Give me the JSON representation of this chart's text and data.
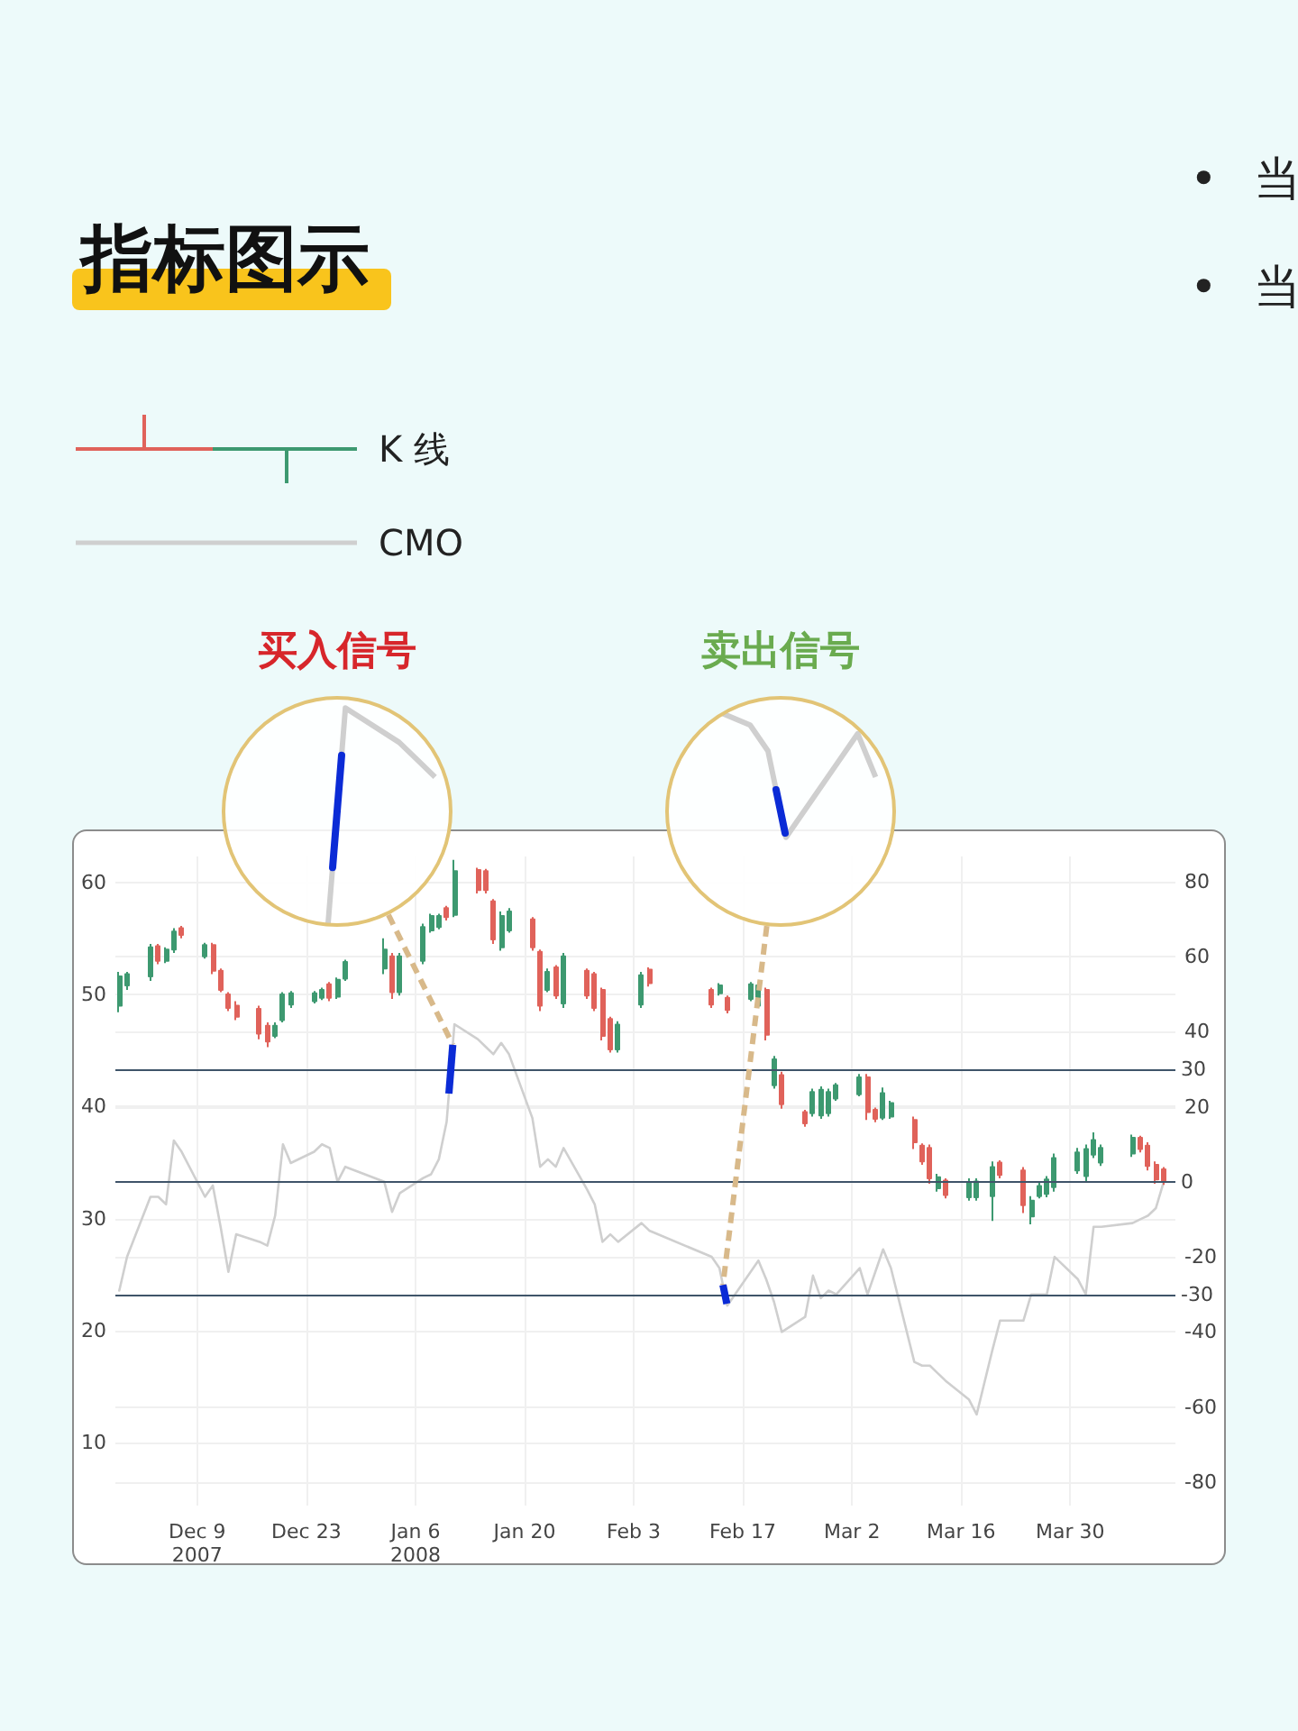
{
  "chart_data": {
    "type": "candlestick",
    "title": "指标图示",
    "annotations": [
      "• 当",
      "• 当",
      "买入信号",
      "卖出信号"
    ],
    "x": [
      "2007-11-29",
      "2007-11-30",
      "2007-12-03",
      "2007-12-04",
      "2007-12-05",
      "2007-12-06",
      "2007-12-07",
      "2007-12-10",
      "2007-12-11",
      "2007-12-12",
      "2007-12-13",
      "2007-12-14",
      "2007-12-17",
      "2007-12-18",
      "2007-12-19",
      "2007-12-20",
      "2007-12-21",
      "2007-12-24",
      "2007-12-25",
      "2007-12-26",
      "2007-12-27",
      "2007-12-28",
      "2008-01-02",
      "2008-01-03",
      "2008-01-04",
      "2008-01-07",
      "2008-01-08",
      "2008-01-09",
      "2008-01-10",
      "2008-01-11",
      "2008-01-14",
      "2008-01-15",
      "2008-01-16",
      "2008-01-17",
      "2008-01-18",
      "2008-01-21",
      "2008-01-22",
      "2008-01-23",
      "2008-01-24",
      "2008-01-25",
      "2008-01-28",
      "2008-01-29",
      "2008-01-30",
      "2008-01-31",
      "2008-02-01",
      "2008-02-04",
      "2008-02-05",
      "2008-02-13",
      "2008-02-14",
      "2008-02-15",
      "2008-02-18",
      "2008-02-19",
      "2008-02-20",
      "2008-02-21",
      "2008-02-22",
      "2008-02-25",
      "2008-02-26",
      "2008-02-27",
      "2008-02-28",
      "2008-02-29",
      "2008-03-03",
      "2008-03-04",
      "2008-03-05",
      "2008-03-06",
      "2008-03-07",
      "2008-03-10",
      "2008-03-11",
      "2008-03-12",
      "2008-03-13",
      "2008-03-14",
      "2008-03-17",
      "2008-03-18",
      "2008-03-20",
      "2008-03-21",
      "2008-03-24",
      "2008-03-25",
      "2008-03-26",
      "2008-03-27",
      "2008-03-28",
      "2008-03-31",
      "2008-04-01",
      "2008-04-02",
      "2008-04-03",
      "2008-04-07",
      "2008-04-08",
      "2008-04-09",
      "2008-04-10",
      "2008-04-11"
    ],
    "series": [
      {
        "name": "K 线",
        "ohlc": [
          [
            49.0,
            52.0,
            48.4,
            51.6
          ],
          [
            50.8,
            52.0,
            50.4,
            51.8
          ],
          [
            51.6,
            54.5,
            51.2,
            54.2
          ],
          [
            54.3,
            54.5,
            52.7,
            53.0
          ],
          [
            53.0,
            54.2,
            52.8,
            54.0
          ],
          [
            54.0,
            55.9,
            53.7,
            55.6
          ],
          [
            55.9,
            56.1,
            55.0,
            55.3
          ],
          [
            53.4,
            54.6,
            53.2,
            54.4
          ],
          [
            54.4,
            54.6,
            51.8,
            52.1
          ],
          [
            52.1,
            52.3,
            50.2,
            50.4
          ],
          [
            50.0,
            50.2,
            48.5,
            48.8
          ],
          [
            49.0,
            49.4,
            47.7,
            48.0
          ],
          [
            48.7,
            49.0,
            46.0,
            46.5
          ],
          [
            47.2,
            47.5,
            45.3,
            45.8
          ],
          [
            46.3,
            47.5,
            46.1,
            47.2
          ],
          [
            47.7,
            50.2,
            47.5,
            50.0
          ],
          [
            49.1,
            50.3,
            48.8,
            50.1
          ],
          [
            49.4,
            50.3,
            49.2,
            50.1
          ],
          [
            49.7,
            50.6,
            49.5,
            50.4
          ],
          [
            50.9,
            51.1,
            49.4,
            49.7
          ],
          [
            49.8,
            51.5,
            49.6,
            51.3
          ],
          [
            51.4,
            53.1,
            51.2,
            52.9
          ],
          [
            52.3,
            55.0,
            51.8,
            54.0
          ],
          [
            53.4,
            53.7,
            49.6,
            50.2
          ],
          [
            50.2,
            53.7,
            49.9,
            53.4
          ],
          [
            53.0,
            56.3,
            52.7,
            56.0
          ],
          [
            55.7,
            57.2,
            55.5,
            57.0
          ],
          [
            56.0,
            57.2,
            55.8,
            57.0
          ],
          [
            57.7,
            57.9,
            56.6,
            56.9
          ],
          [
            57.1,
            62.0,
            56.9,
            61.0
          ],
          [
            61.1,
            61.3,
            59.0,
            59.3
          ],
          [
            61.0,
            61.2,
            59.0,
            59.3
          ],
          [
            58.3,
            58.5,
            54.5,
            54.9
          ],
          [
            54.2,
            57.4,
            53.9,
            57.0
          ],
          [
            55.7,
            57.7,
            55.5,
            57.4
          ],
          [
            56.7,
            56.9,
            53.9,
            54.2
          ],
          [
            53.8,
            54.0,
            48.5,
            49.0
          ],
          [
            50.4,
            52.3,
            50.2,
            52.0
          ],
          [
            52.4,
            52.6,
            49.6,
            49.9
          ],
          [
            49.2,
            53.7,
            48.8,
            53.4
          ],
          [
            52.1,
            52.3,
            49.6,
            49.9
          ],
          [
            51.8,
            52.0,
            48.5,
            48.8
          ],
          [
            50.4,
            50.6,
            45.9,
            46.3
          ],
          [
            47.8,
            48.0,
            44.8,
            45.1
          ],
          [
            45.1,
            47.6,
            44.8,
            47.3
          ],
          [
            49.1,
            52.0,
            48.8,
            51.7
          ],
          [
            52.2,
            52.4,
            50.7,
            51.0
          ],
          [
            50.4,
            50.6,
            48.8,
            49.1
          ],
          [
            50.1,
            51.0,
            49.9,
            50.8
          ],
          [
            49.7,
            49.9,
            48.3,
            48.6
          ],
          [
            49.6,
            51.1,
            49.4,
            50.9
          ],
          [
            49.0,
            51.0,
            48.8,
            50.8
          ],
          [
            50.4,
            50.6,
            45.9,
            46.4
          ],
          [
            41.9,
            44.5,
            41.6,
            44.2
          ],
          [
            42.8,
            43.1,
            39.8,
            40.2
          ],
          [
            39.5,
            39.7,
            38.2,
            38.5
          ],
          [
            39.4,
            41.6,
            39.1,
            41.3
          ],
          [
            39.2,
            41.8,
            38.9,
            41.5
          ],
          [
            39.4,
            41.6,
            39.1,
            41.3
          ],
          [
            40.7,
            42.1,
            40.5,
            41.9
          ],
          [
            41.1,
            42.9,
            40.9,
            42.6
          ],
          [
            42.6,
            42.9,
            38.8,
            39.5
          ],
          [
            39.7,
            39.9,
            38.6,
            38.9
          ],
          [
            39.0,
            41.7,
            38.8,
            41.2
          ],
          [
            39.1,
            40.5,
            38.9,
            40.3
          ],
          [
            38.8,
            39.1,
            36.2,
            36.8
          ],
          [
            36.5,
            36.7,
            34.8,
            35.1
          ],
          [
            36.3,
            36.6,
            33.1,
            33.6
          ],
          [
            32.7,
            34.0,
            32.4,
            33.7
          ],
          [
            33.4,
            33.6,
            31.8,
            32.1
          ],
          [
            31.9,
            33.6,
            31.6,
            33.2
          ],
          [
            31.9,
            33.6,
            31.6,
            33.3
          ],
          [
            32.0,
            35.1,
            29.8,
            34.6
          ],
          [
            35.0,
            35.2,
            33.6,
            33.9
          ],
          [
            34.3,
            34.6,
            30.5,
            31.2
          ],
          [
            30.2,
            32.0,
            29.5,
            31.6
          ],
          [
            32.0,
            33.2,
            31.8,
            32.9
          ],
          [
            32.2,
            33.8,
            31.9,
            33.5
          ],
          [
            32.8,
            35.8,
            32.4,
            35.4
          ],
          [
            34.3,
            36.3,
            34.0,
            35.9
          ],
          [
            33.8,
            36.6,
            33.2,
            36.2
          ],
          [
            35.7,
            37.7,
            35.4,
            37.0
          ],
          [
            35.0,
            36.6,
            34.7,
            36.3
          ],
          [
            35.8,
            37.5,
            35.5,
            37.2
          ],
          [
            37.2,
            37.4,
            35.9,
            36.2
          ],
          [
            36.5,
            36.8,
            34.3,
            34.7
          ],
          [
            34.8,
            35.1,
            33.1,
            33.5
          ],
          [
            34.4,
            34.6,
            33.0,
            33.3
          ]
        ],
        "colors": [
          "#3d9970",
          "#3d9970",
          "#3d9970",
          "#e0625a",
          "#3d9970",
          "#3d9970",
          "#e0625a",
          "#3d9970",
          "#e0625a",
          "#e0625a",
          "#e0625a",
          "#e0625a",
          "#e0625a",
          "#e0625a",
          "#3d9970",
          "#3d9970",
          "#3d9970",
          "#3d9970",
          "#3d9970",
          "#e0625a",
          "#3d9970",
          "#3d9970",
          "#3d9970",
          "#e0625a",
          "#3d9970",
          "#3d9970",
          "#3d9970",
          "#3d9970",
          "#e0625a",
          "#3d9970",
          "#e0625a",
          "#e0625a",
          "#e0625a",
          "#3d9970",
          "#3d9970",
          "#e0625a",
          "#e0625a",
          "#3d9970",
          "#e0625a",
          "#3d9970",
          "#e0625a",
          "#e0625a",
          "#e0625a",
          "#e0625a",
          "#3d9970",
          "#3d9970",
          "#e0625a",
          "#e0625a",
          "#3d9970",
          "#e0625a",
          "#3d9970",
          "#3d9970",
          "#e0625a",
          "#3d9970",
          "#e0625a",
          "#e0625a",
          "#3d9970",
          "#3d9970",
          "#3d9970",
          "#3d9970",
          "#3d9970",
          "#e0625a",
          "#e0625a",
          "#3d9970",
          "#3d9970",
          "#e0625a",
          "#e0625a",
          "#e0625a",
          "#3d9970",
          "#e0625a",
          "#3d9970",
          "#3d9970",
          "#3d9970",
          "#e0625a",
          "#e0625a",
          "#3d9970",
          "#3d9970",
          "#3d9970",
          "#3d9970",
          "#3d9970",
          "#3d9970",
          "#3d9970",
          "#3d9970",
          "#3d9970",
          "#e0625a",
          "#e0625a",
          "#e0625a",
          "#e0625a"
        ]
      },
      {
        "name": "CMO",
        "type": "line",
        "axis": "y2",
        "color": "#cfcfcf",
        "values": [
          -29,
          -20,
          -4,
          -4,
          -6,
          11,
          8,
          -4,
          -1,
          -12,
          -24,
          -14,
          -16,
          -17,
          -9,
          10,
          5,
          8,
          10,
          9,
          0,
          4,
          0,
          -8,
          -3,
          1,
          2,
          6,
          16,
          42,
          38,
          36,
          34,
          37,
          34,
          17,
          4,
          6,
          4,
          9,
          -2,
          -6,
          -16,
          -14,
          -16,
          -11,
          -13,
          -20,
          -23,
          -33,
          -24,
          -21,
          -26,
          -32,
          -40,
          -36,
          -25,
          -31,
          -29,
          -30,
          -23,
          -30,
          -24,
          -18,
          -23,
          -48,
          -49,
          -49,
          -51,
          -53,
          -58,
          -62,
          -45,
          -37,
          -37,
          -30,
          -30,
          -30,
          -20,
          -26,
          -30,
          -12,
          -12,
          -11,
          -10,
          -9,
          -7,
          0
        ]
      }
    ],
    "xlim": [
      "2007-11-28T12:00",
      "2008-04-12T12:00"
    ],
    "xticks": [
      {
        "value": "2007-12-09",
        "label": "Dec 9\n2007"
      },
      {
        "value": "2007-12-23",
        "label": "Dec 23"
      },
      {
        "value": "2008-01-06",
        "label": "Jan 6\n2008"
      },
      {
        "value": "2008-01-20",
        "label": "Jan 20"
      },
      {
        "value": "2008-02-03",
        "label": "Feb 3"
      },
      {
        "value": "2008-02-17",
        "label": "Feb 17"
      },
      {
        "value": "2008-03-02",
        "label": "Mar 2"
      },
      {
        "value": "2008-03-16",
        "label": "Mar 16"
      },
      {
        "value": "2008-03-30",
        "label": "Mar 30"
      }
    ],
    "ylim": [
      4.4,
      62.3
    ],
    "yticks": [
      10,
      20,
      30,
      40,
      50,
      60
    ],
    "y2lim": [
      -86.3,
      86.7
    ],
    "y2ticks": [
      -80,
      -60,
      -40,
      -20,
      {
        "value": 0,
        "label": null
      },
      20,
      40,
      60,
      80
    ],
    "ref_lines": [
      {
        "axis": "y2",
        "value": 30,
        "label": "30",
        "color": "#3f5469"
      },
      {
        "axis": "y2",
        "value": 0,
        "label": "0",
        "color": "#3f5469"
      },
      {
        "axis": "y2",
        "value": -30,
        "label": "-30",
        "color": "#3f5469"
      }
    ],
    "grid": true,
    "legend": "top left",
    "marker": "none"
  }
}
